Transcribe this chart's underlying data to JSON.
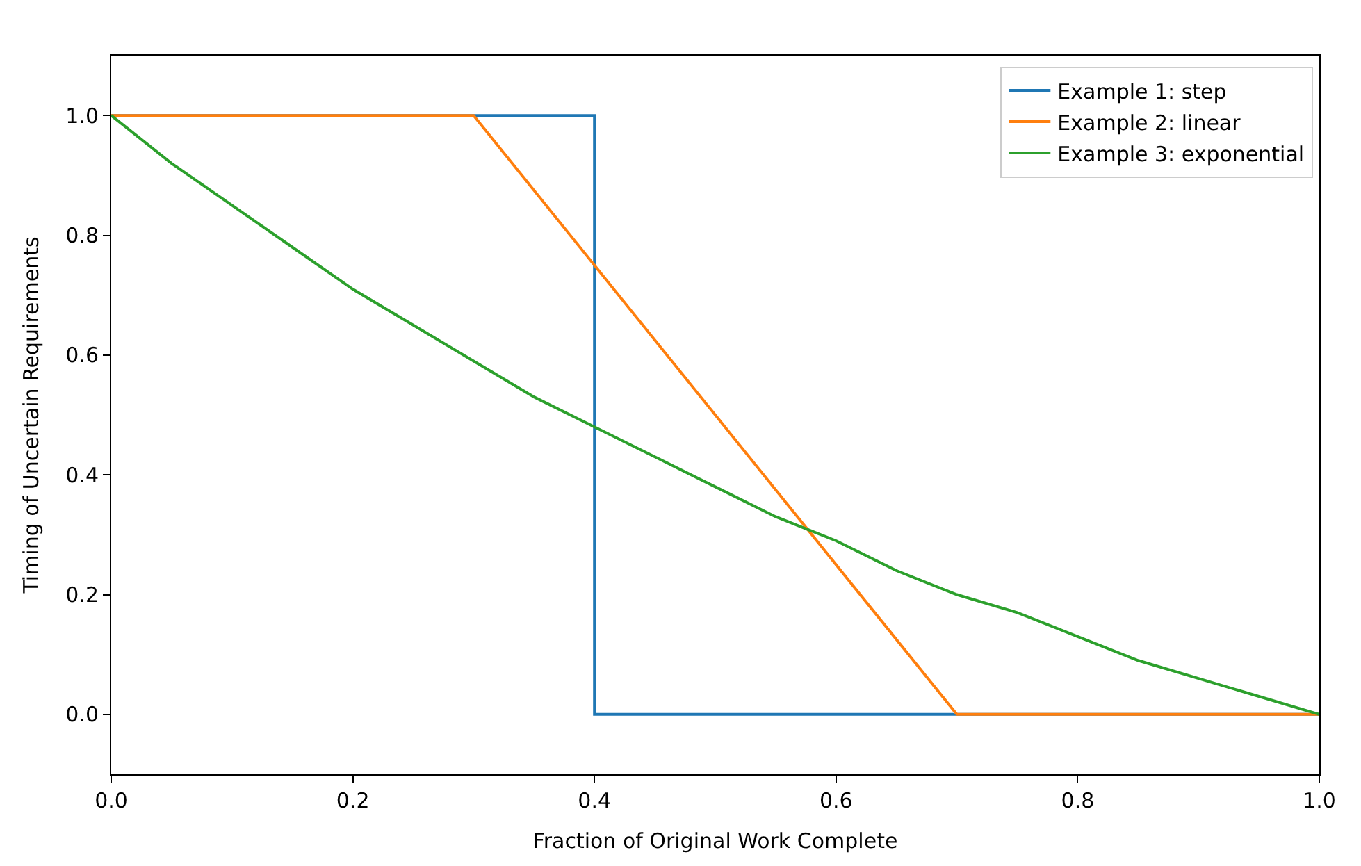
{
  "chart_data": {
    "type": "line",
    "xlabel": "Fraction of Original Work Complete",
    "ylabel": "Timing of Uncertain Requirements",
    "xlim": [
      0,
      1
    ],
    "xticks": [
      {
        "value": 0,
        "label": "0.0"
      },
      {
        "value": 0.2,
        "label": "0.2"
      },
      {
        "value": 0.4,
        "label": "0.4"
      },
      {
        "value": 0.6,
        "label": "0.6"
      },
      {
        "value": 0.8,
        "label": "0.8"
      },
      {
        "value": 1,
        "label": "1.0"
      }
    ],
    "ylim": [
      -0.1,
      1.1
    ],
    "yticks": [
      {
        "value": 0,
        "label": "0.0"
      },
      {
        "value": 0.2,
        "label": "0.2"
      },
      {
        "value": 0.4,
        "label": "0.4"
      },
      {
        "value": 0.6,
        "label": "0.6"
      },
      {
        "value": 0.8,
        "label": "0.8"
      },
      {
        "value": 1,
        "label": "1.0"
      }
    ],
    "legend": "top right",
    "marker": "none",
    "line_style": "solid",
    "series": [
      {
        "name": "Example 1: step",
        "color": "#1f77b4",
        "x": [
          0,
          0.4,
          0.4,
          1
        ],
        "values": [
          1,
          1,
          0,
          0
        ]
      },
      {
        "name": "Example 2: linear",
        "color": "#ff7f0e",
        "x": [
          0,
          0.3,
          0.7,
          1
        ],
        "values": [
          1,
          1,
          0,
          0
        ]
      },
      {
        "name": "Example 3: exponential",
        "color": "#2ca02c",
        "x": [
          0,
          0.05,
          0.1,
          0.15,
          0.2,
          0.25,
          0.3,
          0.35,
          0.4,
          0.45,
          0.5,
          0.55,
          0.6,
          0.65,
          0.7,
          0.75,
          0.8,
          0.85,
          0.9,
          0.95,
          1
        ],
        "values": [
          1,
          0.92,
          0.85,
          0.78,
          0.71,
          0.65,
          0.59,
          0.53,
          0.48,
          0.43,
          0.38,
          0.33,
          0.29,
          0.24,
          0.2,
          0.17,
          0.13,
          0.09,
          0.06,
          0.03,
          0
        ]
      }
    ]
  }
}
